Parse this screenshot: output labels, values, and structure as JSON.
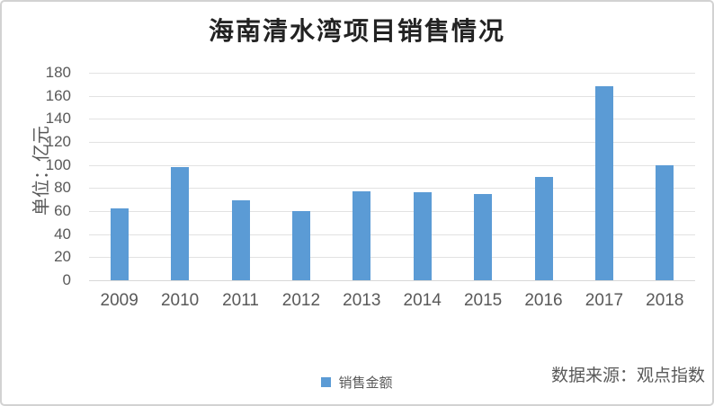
{
  "chart_data": {
    "type": "bar",
    "title": "海南清水湾项目销售情况",
    "ylabel": "单位：亿元",
    "xlabel": "",
    "categories": [
      "2009",
      "2010",
      "2011",
      "2012",
      "2013",
      "2014",
      "2015",
      "2016",
      "2017",
      "2018"
    ],
    "series": [
      {
        "name": "销售金额",
        "values": [
          62,
          98,
          69,
          60,
          77,
          76,
          75,
          90,
          168,
          100
        ]
      }
    ],
    "ylim": [
      0,
      180
    ],
    "ytick_step": 20,
    "ytick_labels": [
      "0",
      "20",
      "40",
      "60",
      "80",
      "100",
      "120",
      "140",
      "160",
      "180"
    ],
    "grid": true,
    "legend_position": "bottom"
  },
  "legend": {
    "items": [
      {
        "label": "销售金额",
        "swatch": "square-icon"
      }
    ]
  },
  "source": {
    "text": "数据来源：观点指数"
  },
  "colors": {
    "bar": "#5b9bd5",
    "gridline": "#e2e2e2",
    "baseline": "#d8d8d8",
    "axis_text": "#595959",
    "title_text": "#222222",
    "card_border": "#d2d2d2"
  }
}
